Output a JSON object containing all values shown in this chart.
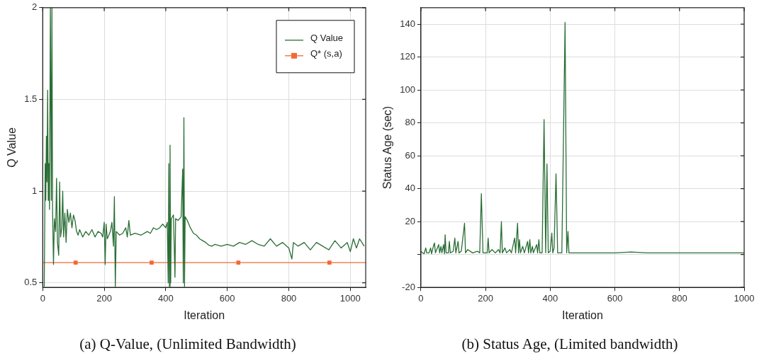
{
  "chart_data": [
    {
      "type": "line",
      "xlabel": "Iteration",
      "ylabel": "Q Value",
      "annotations": [
        "(a) Q-Value, (Unlimited Bandwidth)"
      ],
      "xlim": [
        0,
        1050
      ],
      "xticks": [
        0,
        200,
        400,
        600,
        800,
        1000
      ],
      "ylim": [
        0.475,
        2
      ],
      "yticks": [
        0.5,
        1,
        1.5,
        2
      ],
      "grid": true,
      "legend": "top right",
      "series": [
        {
          "name": "Q Value",
          "color": "#2a6e35",
          "marker": "none",
          "x": [
            5,
            8,
            10,
            12,
            14,
            16,
            18,
            20,
            22,
            25,
            28,
            30,
            32,
            35,
            38,
            42,
            45,
            48,
            52,
            55,
            58,
            62,
            65,
            68,
            72,
            76,
            80,
            85,
            90,
            95,
            100,
            105,
            110,
            115,
            120,
            130,
            140,
            150,
            160,
            170,
            180,
            190,
            195,
            200,
            203,
            206,
            210,
            220,
            225,
            230,
            233,
            236,
            239,
            250,
            260,
            270,
            275,
            280,
            285,
            300,
            320,
            340,
            350,
            360,
            370,
            380,
            390,
            400,
            405,
            408,
            410,
            412,
            414,
            416,
            418,
            425,
            430,
            432,
            440,
            450,
            455,
            457,
            459,
            461,
            463,
            470,
            480,
            490,
            500,
            510,
            520,
            530,
            540,
            550,
            560,
            580,
            600,
            620,
            640,
            660,
            680,
            700,
            720,
            740,
            760,
            780,
            800,
            810,
            815,
            830,
            850,
            870,
            890,
            910,
            930,
            950,
            970,
            990,
            1000,
            1010,
            1020,
            1030,
            1045
          ],
          "values": [
            0.48,
            1.15,
            0.95,
            1.3,
            1.05,
            1.55,
            0.95,
            1.15,
            0.9,
            2,
            0.95,
            2,
            0.9,
            0.6,
            0.85,
            0.78,
            1.07,
            0.72,
            0.65,
            1.05,
            0.75,
            0.8,
            1,
            0.75,
            0.88,
            0.72,
            0.9,
            0.83,
            0.88,
            0.8,
            0.87,
            0.84,
            0.78,
            0.76,
            0.79,
            0.75,
            0.78,
            0.76,
            0.79,
            0.75,
            0.78,
            0.77,
            0.75,
            0.83,
            0.6,
            0.82,
            0.74,
            0.78,
            0.83,
            0.7,
            0.97,
            0.48,
            0.78,
            0.76,
            0.77,
            0.8,
            0.75,
            0.84,
            0.76,
            0.77,
            0.76,
            0.78,
            0.77,
            0.8,
            0.79,
            0.8,
            0.82,
            0.8,
            0.83,
            0.5,
            1.15,
            0.48,
            1.25,
            0.5,
            0.85,
            0.87,
            0.53,
            0.85,
            0.84,
            0.86,
            1.12,
            0.5,
            1.4,
            0.48,
            0.86,
            0.84,
            0.8,
            0.77,
            0.76,
            0.74,
            0.73,
            0.72,
            0.705,
            0.7,
            0.71,
            0.7,
            0.71,
            0.7,
            0.72,
            0.71,
            0.73,
            0.71,
            0.7,
            0.74,
            0.7,
            0.72,
            0.69,
            0.63,
            0.72,
            0.7,
            0.72,
            0.68,
            0.72,
            0.7,
            0.68,
            0.73,
            0.69,
            0.72,
            0.67,
            0.74,
            0.69,
            0.74,
            0.7
          ]
        },
        {
          "name": "Q* (s,a)",
          "color": "#f26a35",
          "marker": "square",
          "x": [
            0,
            107,
            354,
            636,
            932,
            1050
          ],
          "values": [
            0.61,
            0.61,
            0.61,
            0.61,
            0.61,
            0.61
          ]
        }
      ]
    },
    {
      "type": "line",
      "xlabel": "Iteration",
      "ylabel": "Status Age (sec)",
      "annotations": [
        "(b) Status Age, (Limited bandwidth)"
      ],
      "xlim": [
        0,
        1000
      ],
      "xticks": [
        0,
        200,
        400,
        600,
        800,
        1000
      ],
      "ylim": [
        -20,
        150
      ],
      "yticks": [
        -20,
        {
          "value": 0,
          "label": null
        },
        20,
        40,
        60,
        80,
        100,
        120,
        140
      ],
      "grid": true,
      "series": [
        {
          "color": "#2a6e35",
          "marker": "none",
          "x": [
            0,
            5,
            10,
            15,
            18,
            25,
            30,
            33,
            40,
            42,
            45,
            55,
            58,
            62,
            65,
            70,
            73,
            75,
            78,
            85,
            88,
            91,
            100,
            105,
            108,
            115,
            118,
            125,
            135,
            138,
            145,
            160,
            175,
            182,
            187,
            192,
            205,
            208,
            211,
            220,
            230,
            240,
            245,
            249,
            252,
            260,
            265,
            275,
            280,
            290,
            293,
            299,
            302,
            305,
            308,
            315,
            320,
            330,
            333,
            337,
            340,
            345,
            348,
            358,
            361,
            365,
            368,
            375,
            381,
            386,
            390,
            394,
            400,
            405,
            408,
            412,
            418,
            423,
            432,
            436,
            446,
            451,
            455,
            458,
            500,
            550,
            600,
            650,
            700,
            750,
            800,
            850,
            900,
            950,
            1000
          ],
          "values": [
            2,
            1,
            0.5,
            4,
            1,
            1,
            4,
            0.5,
            6,
            7,
            1,
            6,
            1,
            5,
            1,
            6,
            0.5,
            12,
            1,
            1,
            8,
            1,
            2,
            10,
            1,
            8,
            1,
            2,
            19,
            1,
            3,
            1,
            2,
            1,
            37,
            1,
            1,
            10,
            1,
            3,
            1,
            3,
            1,
            20,
            1,
            4,
            1,
            3,
            1,
            10,
            1,
            19,
            1,
            9,
            1,
            5,
            1,
            8,
            1,
            9,
            1,
            5,
            1,
            6,
            1,
            9,
            1,
            1,
            82,
            1,
            55,
            1,
            2,
            13,
            1,
            4,
            49,
            1,
            1,
            1,
            141,
            1,
            14,
            1,
            1,
            1,
            1,
            1.5,
            1,
            1,
            1,
            1,
            1,
            1,
            1
          ]
        }
      ]
    }
  ]
}
